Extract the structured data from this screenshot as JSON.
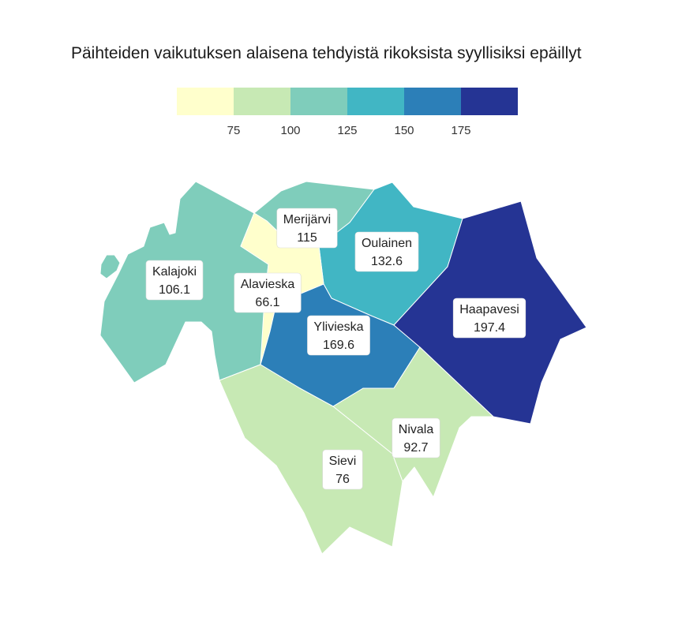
{
  "title": "Päihteiden vaikutuksen alaisena tehdyistä rikoksista syyllisiksi epäillyt",
  "legend": {
    "colors": [
      "#ffffcc",
      "#c7e9b4",
      "#7fcdbb",
      "#41b6c4",
      "#2c7fb8",
      "#253494"
    ],
    "breaks": [
      "75",
      "100",
      "125",
      "150",
      "175"
    ]
  },
  "chart_data": {
    "type": "choropleth",
    "title": "Päihteiden vaikutuksen alaisena tehdyistä rikoksista syyllisiksi epäillyt",
    "regions": [
      {
        "name": "Kalajoki",
        "value": "106.1",
        "color": "#7fcdbb"
      },
      {
        "name": "Merijärvi",
        "value": "115",
        "color": "#7fcdbb"
      },
      {
        "name": "Oulainen",
        "value": "132.6",
        "color": "#41b6c4"
      },
      {
        "name": "Alavieska",
        "value": "66.1",
        "color": "#ffffcc"
      },
      {
        "name": "Ylivieska",
        "value": "169.6",
        "color": "#2c7fb8"
      },
      {
        "name": "Haapavesi",
        "value": "197.4",
        "color": "#253494"
      },
      {
        "name": "Nivala",
        "value": "92.7",
        "color": "#c7e9b4"
      },
      {
        "name": "Sievi",
        "value": "76",
        "color": "#c7e9b4"
      }
    ]
  }
}
